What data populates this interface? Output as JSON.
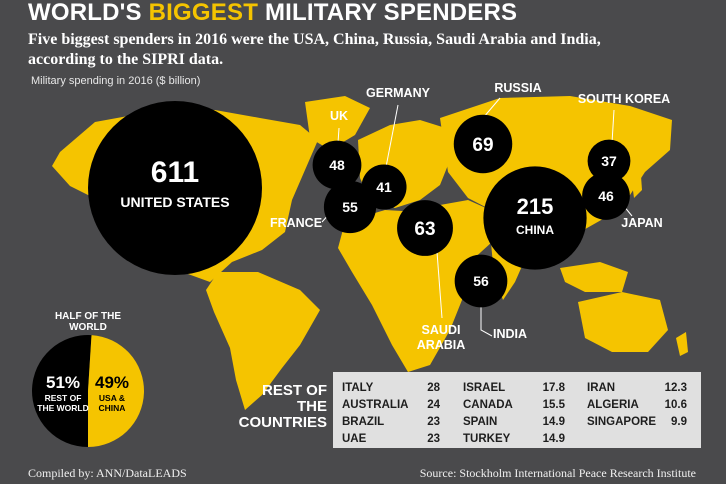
{
  "title_part1": "WORLD'S",
  "title_part2": "BIGGEST",
  "title_part3": "MILITARY SPENDERS",
  "subtitle": "Five biggest spenders in 2016 were the USA, China, Russia, Saudi Arabia and India, according to the SIPRI data.",
  "unit_label": "Military spending in 2016 ($ billion)",
  "colors": {
    "background": "#4a4a4c",
    "map": "#f5c400",
    "bubble": "#000000",
    "table_bg": "#e0e0e0"
  },
  "chart_data": {
    "type": "bubble-map",
    "title": "WORLD'S BIGGEST MILITARY SPENDERS",
    "unit": "$ billion",
    "year": 2016,
    "bubbles": [
      {
        "country": "UNITED STATES",
        "value": 611,
        "label_inside": true
      },
      {
        "country": "CHINA",
        "value": 215,
        "label_inside": true
      },
      {
        "country": "RUSSIA",
        "value": 69
      },
      {
        "country": "SAUDI ARABIA",
        "value": 63
      },
      {
        "country": "INDIA",
        "value": 56
      },
      {
        "country": "FRANCE",
        "value": 55
      },
      {
        "country": "UK",
        "value": 48
      },
      {
        "country": "JAPAN",
        "value": 46
      },
      {
        "country": "GERMANY",
        "value": 41
      },
      {
        "country": "SOUTH KOREA",
        "value": 37
      }
    ],
    "pie": {
      "title": "HALF OF THE WORLD",
      "slices": [
        {
          "label": "51%",
          "sublabel": "REST OF THE WORLD",
          "value": 51
        },
        {
          "label": "49%",
          "sublabel": "USA & CHINA",
          "value": 49
        }
      ]
    },
    "rest_label": "REST OF THE COUNTRIES",
    "rest_of_countries": [
      [
        {
          "country": "ITALY",
          "value": "28"
        },
        {
          "country": "AUSTRALIA",
          "value": "24"
        },
        {
          "country": "BRAZIL",
          "value": "23"
        },
        {
          "country": "UAE",
          "value": "23"
        }
      ],
      [
        {
          "country": "ISRAEL",
          "value": "17.8"
        },
        {
          "country": "CANADA",
          "value": "15.5"
        },
        {
          "country": "SPAIN",
          "value": "14.9"
        },
        {
          "country": "TURKEY",
          "value": "14.9"
        }
      ],
      [
        {
          "country": "IRAN",
          "value": "12.3"
        },
        {
          "country": "ALGERIA",
          "value": "10.6"
        },
        {
          "country": "SINGAPORE",
          "value": "9.9"
        }
      ]
    ]
  },
  "footer_left": "Compiled by: ANN/DataLEADS",
  "footer_right": "Source: Stockholm International Peace Research Institute"
}
